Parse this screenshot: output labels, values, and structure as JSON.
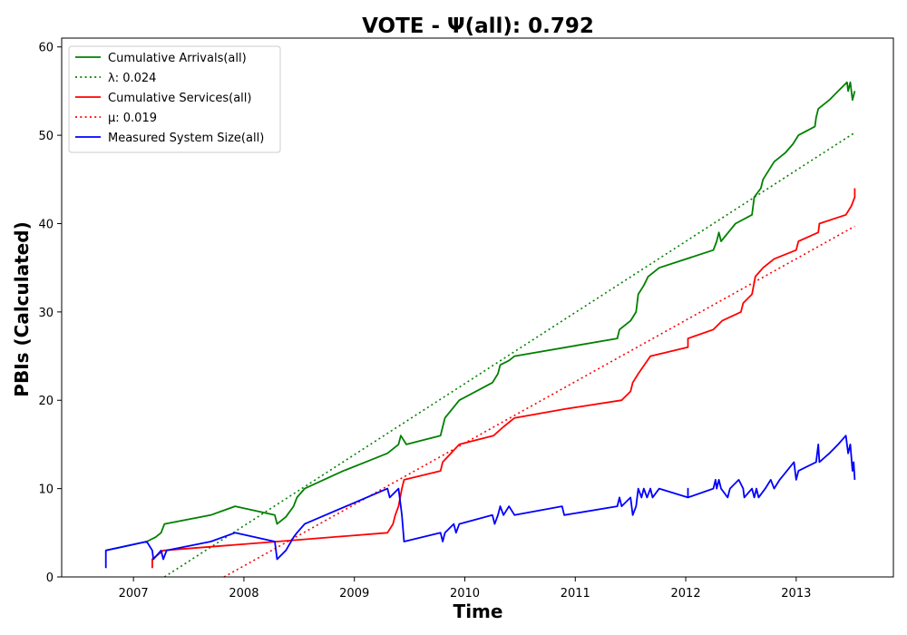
{
  "chart_data": {
    "type": "line",
    "title": "VOTE -  Ψ(all): 0.792",
    "xlabel": "Time",
    "ylabel": "PBIs (Calculated)",
    "xlim": [
      2006.35,
      2013.88
    ],
    "ylim": [
      0,
      61
    ],
    "xticks": [
      2007,
      2008,
      2009,
      2010,
      2011,
      2012,
      2013
    ],
    "yticks": [
      0,
      10,
      20,
      30,
      40,
      50,
      60
    ],
    "grid": false,
    "legend_position": "upper-left",
    "legend": [
      {
        "label": "Cumulative Arrivals(all)",
        "color": "#008000",
        "style": "solid"
      },
      {
        "label": "λ: 0.024",
        "color": "#008000",
        "style": "dotted"
      },
      {
        "label": "Cumulative Services(all)",
        "color": "#ff0000",
        "style": "solid"
      },
      {
        "label": "μ: 0.019",
        "color": "#ff0000",
        "style": "dotted"
      },
      {
        "label": "Measured System Size(all)",
        "color": "#0000ff",
        "style": "solid"
      }
    ],
    "series": [
      {
        "name": "Cumulative Arrivals(all)",
        "color": "#008000",
        "style": "solid",
        "points": [
          [
            2006.75,
            3
          ],
          [
            2007.12,
            4
          ],
          [
            2007.2,
            4.5
          ],
          [
            2007.25,
            5
          ],
          [
            2007.28,
            6
          ],
          [
            2007.7,
            7
          ],
          [
            2007.92,
            8
          ],
          [
            2008.28,
            7
          ],
          [
            2008.3,
            6
          ],
          [
            2008.38,
            6.8
          ],
          [
            2008.45,
            8
          ],
          [
            2008.48,
            9
          ],
          [
            2008.55,
            10
          ],
          [
            2008.9,
            12
          ],
          [
            2009.1,
            13
          ],
          [
            2009.3,
            14
          ],
          [
            2009.35,
            14.5
          ],
          [
            2009.4,
            15
          ],
          [
            2009.42,
            16
          ],
          [
            2009.47,
            15
          ],
          [
            2009.78,
            16
          ],
          [
            2009.8,
            17
          ],
          [
            2009.82,
            18
          ],
          [
            2009.95,
            20
          ],
          [
            2010.25,
            22
          ],
          [
            2010.3,
            23
          ],
          [
            2010.32,
            24
          ],
          [
            2010.4,
            24.5
          ],
          [
            2010.45,
            25
          ],
          [
            2011.38,
            27
          ],
          [
            2011.4,
            28
          ],
          [
            2011.5,
            29
          ],
          [
            2011.55,
            30
          ],
          [
            2011.57,
            32
          ],
          [
            2011.62,
            33
          ],
          [
            2011.66,
            34
          ],
          [
            2011.76,
            35
          ],
          [
            2012.25,
            37
          ],
          [
            2012.28,
            38
          ],
          [
            2012.3,
            39
          ],
          [
            2012.32,
            38
          ],
          [
            2012.45,
            40
          ],
          [
            2012.6,
            41
          ],
          [
            2012.62,
            43
          ],
          [
            2012.68,
            44
          ],
          [
            2012.7,
            45
          ],
          [
            2012.8,
            47
          ],
          [
            2012.9,
            48
          ],
          [
            2012.97,
            49
          ],
          [
            2013.02,
            50
          ],
          [
            2013.17,
            51
          ],
          [
            2013.18,
            52
          ],
          [
            2013.2,
            53
          ],
          [
            2013.3,
            54
          ],
          [
            2013.38,
            55
          ],
          [
            2013.46,
            56
          ],
          [
            2013.47,
            55
          ],
          [
            2013.49,
            56
          ],
          [
            2013.51,
            54
          ],
          [
            2013.53,
            55
          ]
        ]
      },
      {
        "name": "λ: 0.024",
        "color": "#008000",
        "style": "dotted",
        "points": [
          [
            2007.28,
            0
          ],
          [
            2013.53,
            50.3
          ]
        ]
      },
      {
        "name": "Cumulative Services(all)",
        "color": "#ff0000",
        "style": "solid",
        "points": [
          [
            2007.17,
            1
          ],
          [
            2007.17,
            2
          ],
          [
            2007.27,
            3
          ],
          [
            2008.3,
            4
          ],
          [
            2009.3,
            5
          ],
          [
            2009.35,
            6
          ],
          [
            2009.37,
            7
          ],
          [
            2009.4,
            8
          ],
          [
            2009.43,
            10
          ],
          [
            2009.45,
            11
          ],
          [
            2009.78,
            12
          ],
          [
            2009.8,
            13
          ],
          [
            2009.95,
            15
          ],
          [
            2010.26,
            16
          ],
          [
            2010.35,
            17
          ],
          [
            2010.45,
            18
          ],
          [
            2010.9,
            19
          ],
          [
            2011.42,
            20
          ],
          [
            2011.5,
            21
          ],
          [
            2011.52,
            22
          ],
          [
            2011.57,
            23
          ],
          [
            2011.68,
            25
          ],
          [
            2012.02,
            26
          ],
          [
            2012.02,
            27
          ],
          [
            2012.25,
            28
          ],
          [
            2012.33,
            29
          ],
          [
            2012.5,
            30
          ],
          [
            2012.52,
            31
          ],
          [
            2012.6,
            32
          ],
          [
            2012.63,
            34
          ],
          [
            2012.7,
            35
          ],
          [
            2012.8,
            36
          ],
          [
            2013,
            37
          ],
          [
            2013.02,
            38
          ],
          [
            2013.2,
            39
          ],
          [
            2013.21,
            40
          ],
          [
            2013.45,
            41
          ],
          [
            2013.5,
            42
          ],
          [
            2013.53,
            43
          ],
          [
            2013.53,
            44
          ]
        ]
      },
      {
        "name": "μ: 0.019",
        "color": "#ff0000",
        "style": "dotted",
        "points": [
          [
            2007.82,
            0
          ],
          [
            2013.53,
            39.7
          ]
        ]
      },
      {
        "name": "Measured System Size(all)",
        "color": "#0000ff",
        "style": "solid",
        "points": [
          [
            2006.75,
            1
          ],
          [
            2006.75,
            3
          ],
          [
            2007.12,
            4
          ],
          [
            2007.17,
            3
          ],
          [
            2007.18,
            2
          ],
          [
            2007.25,
            3
          ],
          [
            2007.27,
            2
          ],
          [
            2007.3,
            3
          ],
          [
            2007.7,
            4
          ],
          [
            2007.92,
            5
          ],
          [
            2008.28,
            4
          ],
          [
            2008.3,
            2
          ],
          [
            2008.38,
            3
          ],
          [
            2008.45,
            4.5
          ],
          [
            2008.48,
            5
          ],
          [
            2008.55,
            6
          ],
          [
            2009.3,
            10
          ],
          [
            2009.32,
            9
          ],
          [
            2009.4,
            10
          ],
          [
            2009.42,
            8
          ],
          [
            2009.43,
            7
          ],
          [
            2009.45,
            4
          ],
          [
            2009.78,
            5
          ],
          [
            2009.8,
            4
          ],
          [
            2009.82,
            5
          ],
          [
            2009.9,
            6
          ],
          [
            2009.92,
            5
          ],
          [
            2009.95,
            6
          ],
          [
            2010.25,
            7
          ],
          [
            2010.27,
            6
          ],
          [
            2010.3,
            7
          ],
          [
            2010.32,
            8
          ],
          [
            2010.35,
            7
          ],
          [
            2010.4,
            8
          ],
          [
            2010.45,
            7
          ],
          [
            2010.88,
            8
          ],
          [
            2010.9,
            7
          ],
          [
            2011.38,
            8
          ],
          [
            2011.4,
            9
          ],
          [
            2011.42,
            8
          ],
          [
            2011.5,
            9
          ],
          [
            2011.52,
            7
          ],
          [
            2011.55,
            8
          ],
          [
            2011.57,
            10
          ],
          [
            2011.6,
            9
          ],
          [
            2011.62,
            10
          ],
          [
            2011.65,
            9
          ],
          [
            2011.68,
            10
          ],
          [
            2011.7,
            9
          ],
          [
            2011.76,
            10
          ],
          [
            2012.02,
            9
          ],
          [
            2012.02,
            10
          ],
          [
            2012.02,
            9
          ],
          [
            2012.25,
            10
          ],
          [
            2012.27,
            11
          ],
          [
            2012.28,
            10
          ],
          [
            2012.3,
            11
          ],
          [
            2012.32,
            10
          ],
          [
            2012.38,
            9
          ],
          [
            2012.4,
            10
          ],
          [
            2012.48,
            11
          ],
          [
            2012.52,
            10
          ],
          [
            2012.53,
            9
          ],
          [
            2012.6,
            10
          ],
          [
            2012.62,
            9
          ],
          [
            2012.64,
            10
          ],
          [
            2012.66,
            9
          ],
          [
            2012.72,
            10
          ],
          [
            2012.77,
            11
          ],
          [
            2012.8,
            10
          ],
          [
            2012.85,
            11
          ],
          [
            2012.98,
            13
          ],
          [
            2013.0,
            11
          ],
          [
            2013.02,
            12
          ],
          [
            2013.18,
            13
          ],
          [
            2013.2,
            15
          ],
          [
            2013.21,
            13
          ],
          [
            2013.3,
            14
          ],
          [
            2013.38,
            15
          ],
          [
            2013.45,
            16
          ],
          [
            2013.47,
            14
          ],
          [
            2013.49,
            15
          ],
          [
            2013.51,
            12
          ],
          [
            2013.52,
            13
          ],
          [
            2013.53,
            11
          ]
        ]
      }
    ]
  }
}
